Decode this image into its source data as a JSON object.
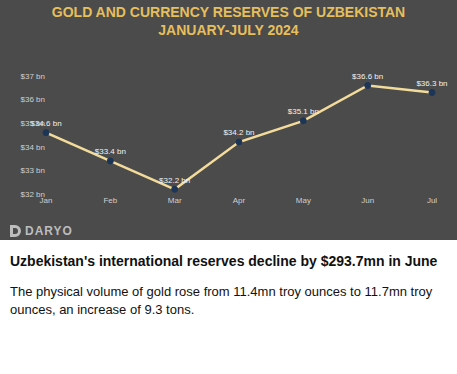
{
  "chart_data": {
    "type": "line",
    "title": "GOLD AND CURRENCY RESERVES OF UZBEKISTAN",
    "subtitle": "JANUARY-JULY 2024",
    "categories": [
      "Jan",
      "Feb",
      "Mar",
      "Apr",
      "May",
      "Jun",
      "Jul"
    ],
    "values": [
      34.6,
      33.4,
      32.2,
      34.2,
      35.1,
      36.6,
      36.3
    ],
    "value_labels": [
      "$34.6 bn",
      "$33.4 bn",
      "$32.2 bn",
      "$34.2 bn",
      "$35.1 bn",
      "$36.6 bn",
      "$36.3 bn"
    ],
    "color": "#f3dc9b",
    "marker": "circle",
    "data_labels": true,
    "grid": false,
    "ylim": [
      32,
      37
    ],
    "yticks": [
      {
        "value": 32,
        "label": "$32 bn"
      },
      {
        "value": 33,
        "label": "$33 bn"
      },
      {
        "value": 34,
        "label": "$34 bn"
      },
      {
        "value": 35,
        "label": "$35 bn"
      },
      {
        "value": 36,
        "label": "$36 bn"
      },
      {
        "value": 37,
        "label": "$37 bn"
      }
    ]
  },
  "logo": "DARYO",
  "headline": "Uzbekistan's international reserves decline by $293.7mn in June",
  "body": "The physical volume of gold rose from 11.4mn troy ounces to 11.7mn troy ounces, an increase of 9.3 tons."
}
